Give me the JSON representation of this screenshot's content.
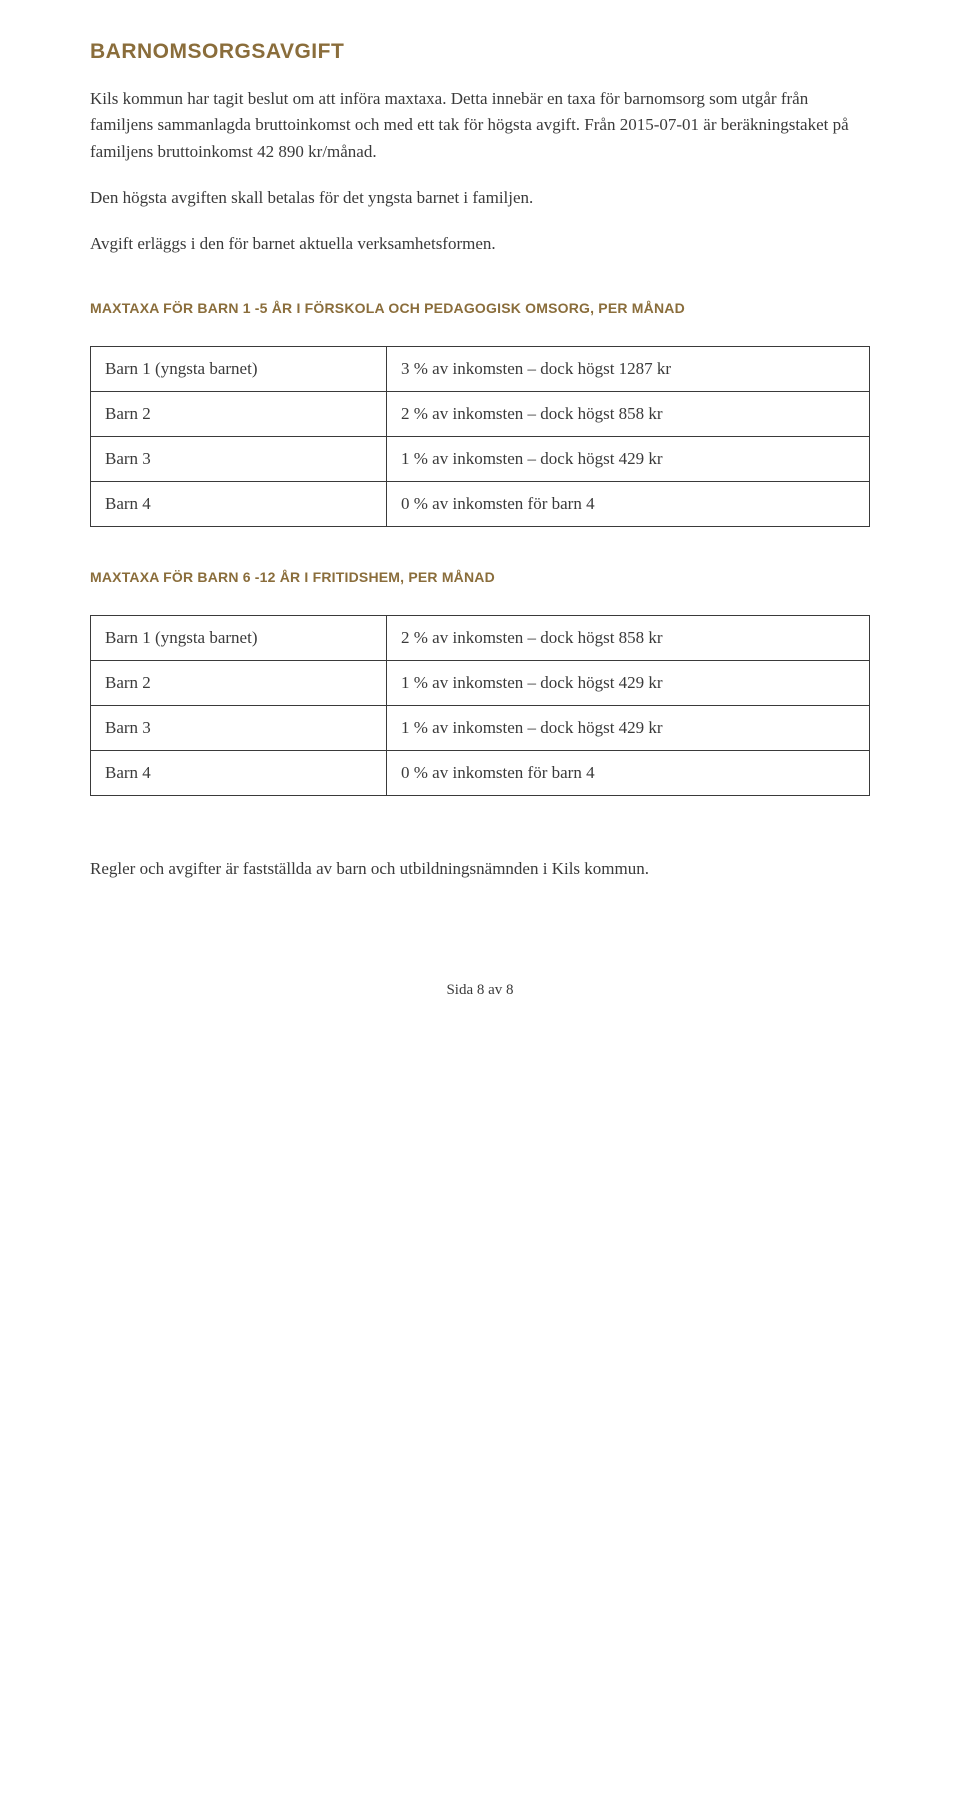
{
  "heading": "BARNOMSORGSAVGIFT",
  "paragraphs": {
    "p1": "Kils kommun har tagit beslut om att införa maxtaxa. Detta innebär en taxa för barnomsorg som utgår från familjens sammanlagda bruttoinkomst och med ett tak för högsta avgift. Från 2015-07-01 är beräkningstaket på familjens bruttoinkomst 42 890 kr/månad.",
    "p2": "Den högsta avgiften skall betalas för det yngsta barnet i familjen.",
    "p3": "Avgift erläggs i den för barnet aktuella verksamhetsformen."
  },
  "section1": {
    "heading": "MAXTAXA FÖR BARN 1 -5 ÅR I FÖRSKOLA OCH PEDAGOGISK OMSORG, PER MÅNAD",
    "rows": [
      {
        "label": "Barn 1 (yngsta barnet)",
        "value": "3 % av inkomsten – dock högst 1287 kr"
      },
      {
        "label": "Barn 2",
        "value": "2 % av inkomsten – dock högst 858 kr"
      },
      {
        "label": "Barn 3",
        "value": "1 % av inkomsten – dock högst 429 kr"
      },
      {
        "label": "Barn 4",
        "value": "0 % av inkomsten för barn 4"
      }
    ]
  },
  "section2": {
    "heading": "MAXTAXA FÖR BARN 6 -12 ÅR I FRITIDSHEM, PER MÅNAD",
    "rows": [
      {
        "label": "Barn 1 (yngsta barnet)",
        "value": "2 % av inkomsten – dock högst 858 kr"
      },
      {
        "label": "Barn 2",
        "value": "1 % av inkomsten – dock högst 429 kr"
      },
      {
        "label": "Barn 3",
        "value": "1 % av inkomsten – dock högst 429 kr"
      },
      {
        "label": "Barn 4",
        "value": "0 % av inkomsten för barn 4"
      }
    ]
  },
  "closing": "Regler och avgifter är fastställda av barn och utbildningsnämnden i Kils kommun.",
  "footer": "Sida 8 av 8",
  "colors": {
    "heading": "#8a6d3b",
    "text": "#3a3a3a",
    "border": "#3a3a3a",
    "background": "#ffffff"
  }
}
